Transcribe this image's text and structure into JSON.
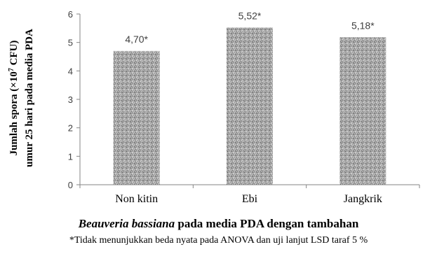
{
  "chart_data": {
    "type": "bar",
    "categories": [
      "Non kitin",
      "Ebi",
      "Jangkrik"
    ],
    "values": [
      4.7,
      5.52,
      5.18
    ],
    "value_labels": [
      "4,70*",
      "5,52*",
      "5,18*"
    ],
    "ylim": [
      0,
      6
    ],
    "yticks": [
      "0",
      "1",
      "2",
      "3",
      "4",
      "5",
      "6"
    ],
    "ylabel_line1": "Jumlah spora (×10",
    "ylabel_sup": "7",
    "ylabel_line1_end": " CFU)",
    "ylabel_line2": "umur 25 hari pada media PDA",
    "xlabel_italic": "Beauveria bassiana",
    "xlabel_rest": " pada media PDA dengan tambahan",
    "footnote": "*Tidak menunjukkan beda nyata pada ANOVA dan uji lanjut LSD taraf 5 %",
    "bar_color": "#9e9e9e",
    "grid": false
  }
}
